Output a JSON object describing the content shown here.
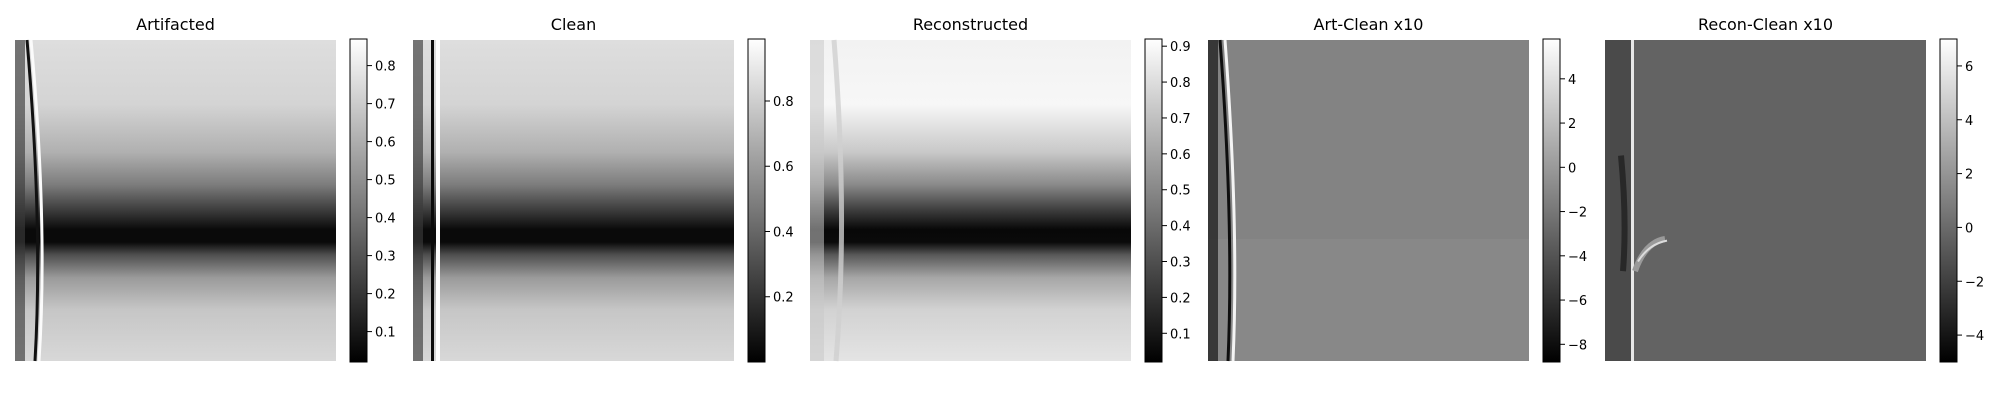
{
  "chart_data": [
    {
      "type": "heatmap",
      "title": "Artifacted",
      "colormap": "gray",
      "colorbar": {
        "range": [
          0.02,
          0.87
        ],
        "ticks": [
          0.1,
          0.2,
          0.3,
          0.4,
          0.5,
          0.6,
          0.7,
          0.8
        ],
        "tick_labels": [
          "0.1",
          "0.2",
          "0.3",
          "0.4",
          "0.5",
          "0.6",
          "0.7",
          "0.8"
        ]
      },
      "image": {
        "kind": "artifacted"
      }
    },
    {
      "type": "heatmap",
      "title": "Clean",
      "colormap": "gray",
      "colorbar": {
        "range": [
          0.0,
          0.99
        ],
        "ticks": [
          0.2,
          0.4,
          0.6,
          0.8
        ],
        "tick_labels": [
          "0.2",
          "0.4",
          "0.6",
          "0.8"
        ]
      },
      "image": {
        "kind": "clean"
      }
    },
    {
      "type": "heatmap",
      "title": "Reconstructed",
      "colormap": "gray",
      "colorbar": {
        "range": [
          0.02,
          0.92
        ],
        "ticks": [
          0.1,
          0.2,
          0.3,
          0.4,
          0.5,
          0.6,
          0.7,
          0.8,
          0.9
        ],
        "tick_labels": [
          "0.1",
          "0.2",
          "0.3",
          "0.4",
          "0.5",
          "0.6",
          "0.7",
          "0.8",
          "0.9"
        ]
      },
      "image": {
        "kind": "reconstructed"
      }
    },
    {
      "type": "heatmap",
      "title": "Art-Clean x10",
      "colormap": "gray",
      "colorbar": {
        "range": [
          -8.8,
          5.8
        ],
        "ticks": [
          -8,
          -6,
          -4,
          -2,
          0,
          2,
          4
        ],
        "tick_labels": [
          "−8",
          "−6",
          "−4",
          "−2",
          "0",
          "2",
          "4"
        ]
      },
      "image": {
        "kind": "art_diff"
      }
    },
    {
      "type": "heatmap",
      "title": "Recon-Clean x10",
      "colormap": "gray",
      "colorbar": {
        "range": [
          -5.0,
          7.0
        ],
        "ticks": [
          -4,
          -2,
          0,
          2,
          4,
          6
        ],
        "tick_labels": [
          "−4",
          "−2",
          "0",
          "2",
          "4",
          "6"
        ]
      },
      "image": {
        "kind": "recon_diff"
      }
    }
  ]
}
